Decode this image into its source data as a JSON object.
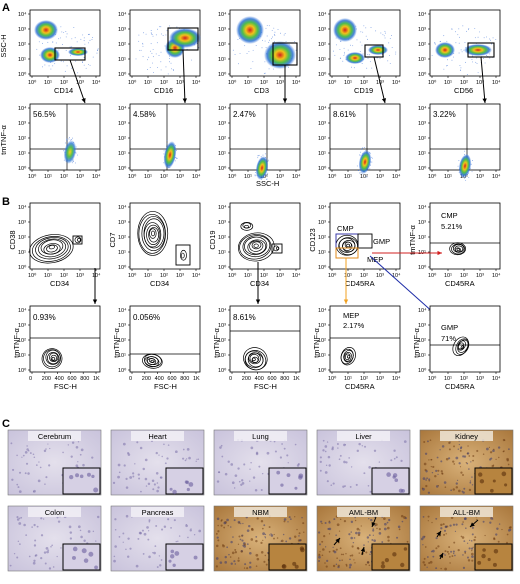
{
  "panel_labels": {
    "a": "A",
    "b": "B",
    "c": "C"
  },
  "section_a": {
    "top_ylabel": "SSC-H",
    "top_markers": [
      "CD14",
      "CD16",
      "CD3",
      "CD19",
      "CD56"
    ],
    "bottom_ylabel": "tmTNF-α",
    "bottom_xlabel": "SSC-H",
    "percentages": [
      "56.5%",
      "4.58%",
      "2.47%",
      "8.61%",
      "3.22%"
    ]
  },
  "section_b": {
    "top_ylabels": [
      "CD38",
      "CD7",
      "CD19",
      "CD123",
      "tmTNF-α"
    ],
    "top_xlabels": [
      "CD34",
      "CD34",
      "CD34",
      "CD45RA",
      "CD45RA"
    ],
    "gates": {
      "cmp": "CMP",
      "gmp": "GMP",
      "mep": "MEP"
    },
    "cmp_result": {
      "name": "CMP",
      "value": "5.21%"
    },
    "bottom_ylabel": "tmTNF-α",
    "bottom_xlabels": [
      "FSC-H",
      "FSC-H",
      "FSC-H",
      "CD45RA",
      "CD45RA"
    ],
    "bottom_values": [
      "0.93%",
      "0.056%",
      "8.61%",
      "2.17%",
      "71%"
    ],
    "mep_label": "MEP",
    "gmp_label": "GMP"
  },
  "section_c": {
    "tissues": [
      "Cerebrum",
      "Heart",
      "Lung",
      "Liver",
      "Kidney",
      "Colon",
      "Pancreas",
      "NBM",
      "AML-BM",
      "ALL-BM"
    ]
  },
  "axis_ticks": {
    "log": [
      "10⁰",
      "10¹",
      "10²",
      "10³",
      "10⁴"
    ],
    "fsc": [
      "0",
      "200",
      "400",
      "600",
      "800",
      "1K"
    ]
  }
}
